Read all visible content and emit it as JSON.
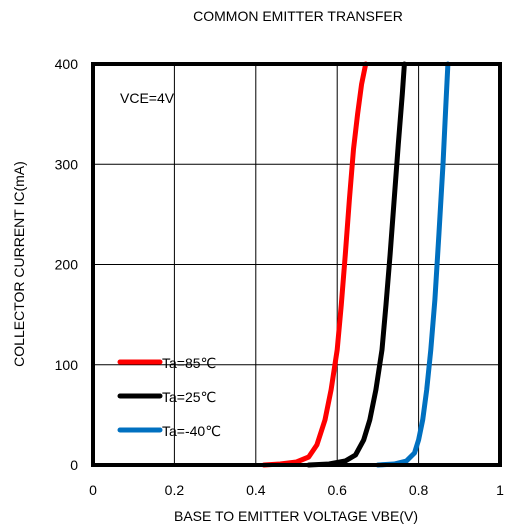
{
  "chart_data": {
    "type": "line",
    "title": "COMMON EMITTER TRANSFER",
    "xlabel": "BASE TO EMITTER VOLTAGE  VBE(V)",
    "ylabel": "COLLECTOR CURRENT  IC(mA)",
    "annotation": "VCE=4V",
    "xlim": [
      0,
      1
    ],
    "ylim": [
      0,
      400
    ],
    "grid": true,
    "legend_position": "bottom-left",
    "x_ticks": [
      "0",
      "0.2",
      "0.4",
      "0.6",
      "0.8",
      "1"
    ],
    "y_ticks": [
      "0",
      "100",
      "200",
      "300",
      "400"
    ],
    "series": [
      {
        "name": "Ta=85℃",
        "color": "#ff0000",
        "points": [
          [
            0.42,
            0
          ],
          [
            0.46,
            1
          ],
          [
            0.5,
            3
          ],
          [
            0.53,
            8
          ],
          [
            0.55,
            20
          ],
          [
            0.57,
            45
          ],
          [
            0.585,
            75
          ],
          [
            0.6,
            115
          ],
          [
            0.61,
            160
          ],
          [
            0.62,
            210
          ],
          [
            0.63,
            265
          ],
          [
            0.64,
            315
          ],
          [
            0.65,
            350
          ],
          [
            0.66,
            380
          ],
          [
            0.67,
            400
          ]
        ]
      },
      {
        "name": "Ta=25℃",
        "color": "#000000",
        "points": [
          [
            0.53,
            0
          ],
          [
            0.58,
            1
          ],
          [
            0.62,
            4
          ],
          [
            0.645,
            10
          ],
          [
            0.665,
            25
          ],
          [
            0.68,
            45
          ],
          [
            0.695,
            75
          ],
          [
            0.71,
            115
          ],
          [
            0.72,
            160
          ],
          [
            0.73,
            210
          ],
          [
            0.74,
            265
          ],
          [
            0.75,
            320
          ],
          [
            0.76,
            370
          ],
          [
            0.765,
            400
          ]
        ]
      },
      {
        "name": "Ta=-40℃",
        "color": "#0070c0",
        "points": [
          [
            0.7,
            0
          ],
          [
            0.74,
            1
          ],
          [
            0.77,
            4
          ],
          [
            0.79,
            12
          ],
          [
            0.8,
            25
          ],
          [
            0.81,
            45
          ],
          [
            0.82,
            75
          ],
          [
            0.83,
            115
          ],
          [
            0.84,
            165
          ],
          [
            0.85,
            230
          ],
          [
            0.86,
            300
          ],
          [
            0.867,
            360
          ],
          [
            0.872,
            400
          ]
        ]
      }
    ]
  }
}
